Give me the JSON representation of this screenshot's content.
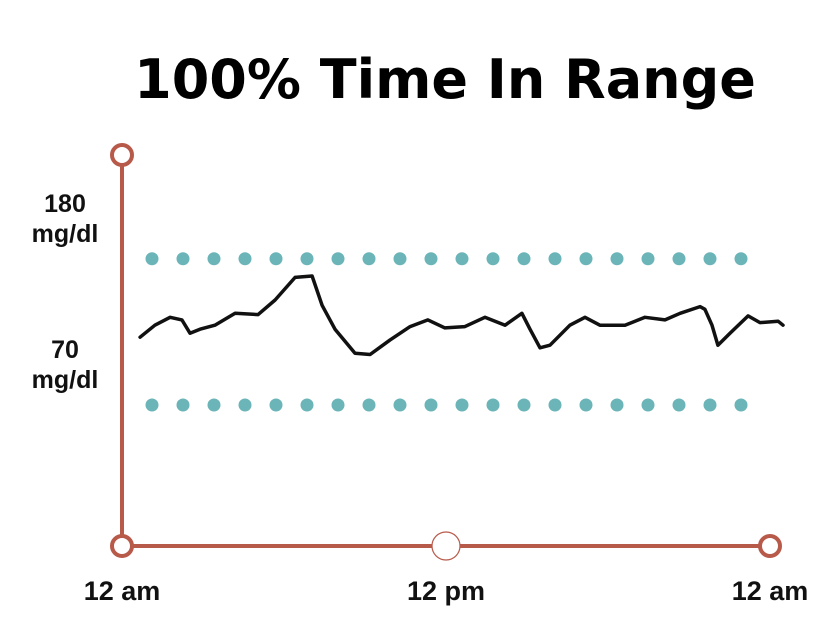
{
  "chart_data": {
    "type": "line",
    "title": "100% Time In Range",
    "x": [
      0.67,
      1.22,
      1.78,
      2.22,
      2.52,
      2.89,
      3.44,
      4.19,
      5.04,
      5.67,
      6.41,
      7.04,
      7.41,
      7.89,
      8.63,
      9.19,
      9.93,
      10.67,
      11.33,
      11.96,
      12.7,
      13.44,
      14.19,
      14.81,
      15.11,
      15.48,
      15.85,
      16.59,
      17.15,
      17.7,
      18.63,
      19.37,
      20.11,
      20.67,
      21.41,
      21.59,
      21.85,
      22.07,
      22.52,
      23.19,
      23.63,
      24.3,
      24.48
    ],
    "series": [
      {
        "color": "#111111",
        "values": [
          121,
          130,
          136,
          134,
          124,
          127,
          130,
          139,
          138,
          149,
          166,
          167,
          145,
          127,
          109,
          108,
          119,
          129,
          134,
          128,
          129,
          136,
          130,
          139,
          127,
          113,
          115,
          130,
          136,
          130,
          130,
          136,
          134,
          139,
          144,
          142,
          130,
          115,
          124,
          137,
          132,
          133,
          130
        ]
      }
    ],
    "xlim": [
      0,
      24
    ],
    "xticks": [
      {
        "value": 0,
        "label": "12 am"
      },
      {
        "value": 12,
        "label": "12 pm"
      },
      {
        "value": 24,
        "label": "12 am"
      }
    ],
    "ylim": [
      -36,
      258
    ],
    "yticks": [
      {
        "value": 70,
        "label": "70 mg/dl"
      },
      {
        "value": 180,
        "label": "180 mg/dl"
      }
    ],
    "grid": true,
    "grid_color": "#6bb5b8",
    "axis_color": "#b85a4a"
  }
}
